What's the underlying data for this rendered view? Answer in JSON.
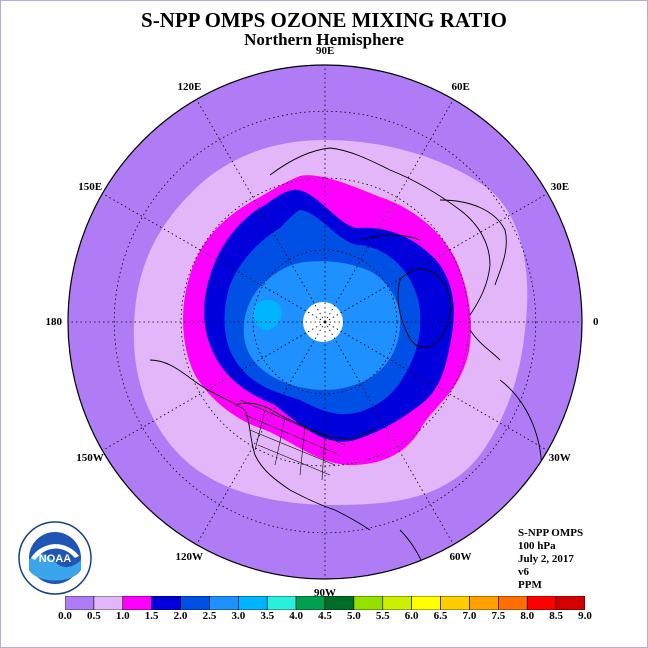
{
  "title": "S-NPP OMPS OZONE MIXING RATIO",
  "subtitle": "Northern Hemisphere",
  "longitude_labels": [
    {
      "label": "90E",
      "lon": 90
    },
    {
      "label": "60E",
      "lon": 60
    },
    {
      "label": "30E",
      "lon": 30
    },
    {
      "label": "0",
      "lon": 0
    },
    {
      "label": "30W",
      "lon": -30
    },
    {
      "label": "60W",
      "lon": -60
    },
    {
      "label": "90W",
      "lon": -90
    },
    {
      "label": "120W",
      "lon": -120
    },
    {
      "label": "150W",
      "lon": -150
    },
    {
      "label": "180",
      "lon": 180
    },
    {
      "label": "150E",
      "lon": 150
    },
    {
      "label": "120E",
      "lon": 120
    }
  ],
  "info": {
    "instrument": "S-NPP OMPS",
    "level": "100 hPa",
    "date": "July 2, 2017",
    "version": "v6",
    "units": "PPM"
  },
  "logo": {
    "text": "NOAA",
    "icon": "noaa-logo"
  },
  "colorbar": {
    "ticks": [
      "0.0",
      "0.5",
      "1.0",
      "1.5",
      "2.0",
      "2.5",
      "3.0",
      "3.5",
      "4.0",
      "4.5",
      "5.0",
      "5.5",
      "6.0",
      "6.5",
      "7.0",
      "7.5",
      "8.0",
      "8.5",
      "9.0"
    ],
    "colors": [
      "#b07cf5",
      "#e2b6f8",
      "#ff00ff",
      "#0000dc",
      "#0050e6",
      "#1e90ff",
      "#00b4ff",
      "#28f0dc",
      "#00a050",
      "#006e28",
      "#94e100",
      "#cdf000",
      "#ffff00",
      "#ffcd00",
      "#ffa000",
      "#ff6e00",
      "#ff0000",
      "#d20000",
      "#8c5a3c"
    ]
  },
  "chart_data": {
    "type": "polar-contour-map",
    "projection": "polar-stereographic-north",
    "variable": "ozone mixing ratio",
    "units": "PPM",
    "level": "100 hPa",
    "levels": [
      0.0,
      0.5,
      1.0,
      1.5,
      2.0,
      2.5,
      3.0,
      3.5,
      4.0,
      4.5,
      5.0,
      5.5,
      6.0,
      6.5,
      7.0,
      7.5,
      8.0,
      8.5,
      9.0
    ],
    "observed_bands": [
      {
        "range": [
          0.0,
          0.5
        ],
        "color": "#b07cf5",
        "region": "tropics / subtropics (outer ring)"
      },
      {
        "range": [
          0.5,
          1.0
        ],
        "color": "#e2b6f8",
        "region": "subtropical ring"
      },
      {
        "range": [
          1.0,
          1.5
        ],
        "color": "#ff00ff",
        "region": "mid-latitude ring"
      },
      {
        "range": [
          1.5,
          2.0
        ],
        "color": "#0000dc",
        "region": "high mid-latitudes"
      },
      {
        "range": [
          2.0,
          2.5
        ],
        "color": "#0050e6",
        "region": "polar region"
      },
      {
        "range": [
          2.5,
          3.0
        ],
        "color": "#1e90ff",
        "region": "polar cap"
      }
    ],
    "pole_data": "no data (white disc)"
  }
}
